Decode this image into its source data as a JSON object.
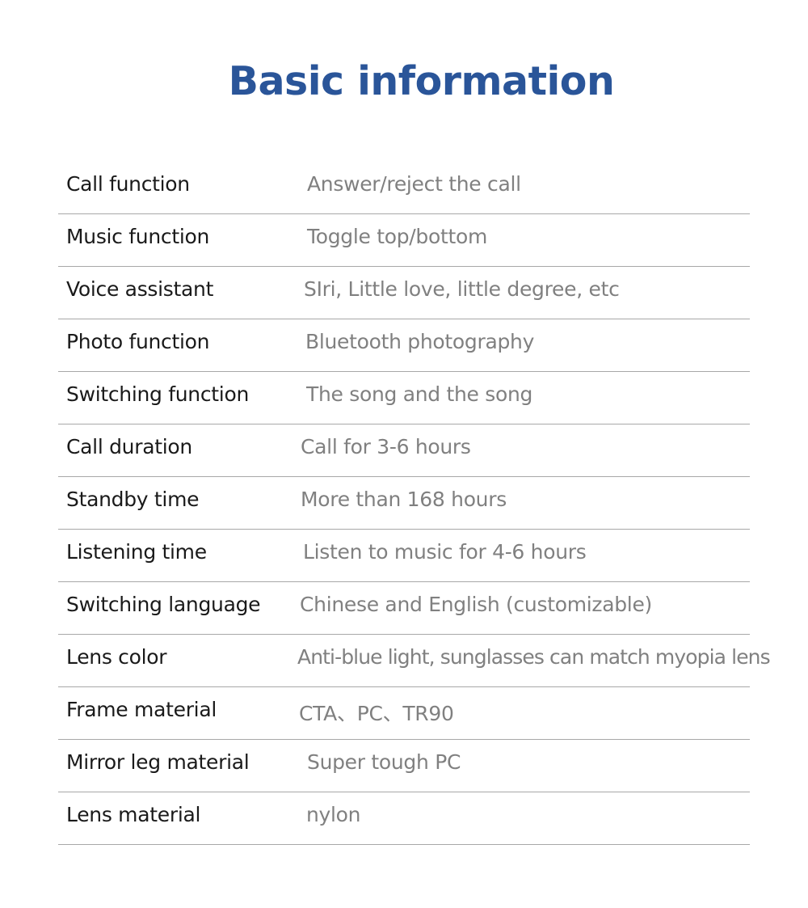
{
  "title": "Basic information",
  "rows": [
    {
      "label": "Call function",
      "value": "Answer/reject the call"
    },
    {
      "label": "Music function",
      "value": "Toggle top/bottom"
    },
    {
      "label": "Voice assistant",
      "value": "SIri, Little love, little degree, etc"
    },
    {
      "label": "Photo function",
      "value": "Bluetooth photography"
    },
    {
      "label": "Switching function",
      "value": "The song and the song"
    },
    {
      "label": "Call duration",
      "value": "Call for 3-6 hours"
    },
    {
      "label": "Standby time",
      "value": "More than 168 hours"
    },
    {
      "label": "Listening time",
      "value": "Listen to music for 4-6 hours"
    },
    {
      "label": "Switching language",
      "value": "Chinese and English (customizable)"
    },
    {
      "label": "Lens color",
      "value": "Anti-blue light, sunglasses can match myopia lens"
    },
    {
      "label": "Frame material",
      "value": "CTA、PC、TR90"
    },
    {
      "label": "Mirror leg material",
      "value": "Super tough PC"
    },
    {
      "label": "Lens material",
      "value": "nylon"
    }
  ]
}
